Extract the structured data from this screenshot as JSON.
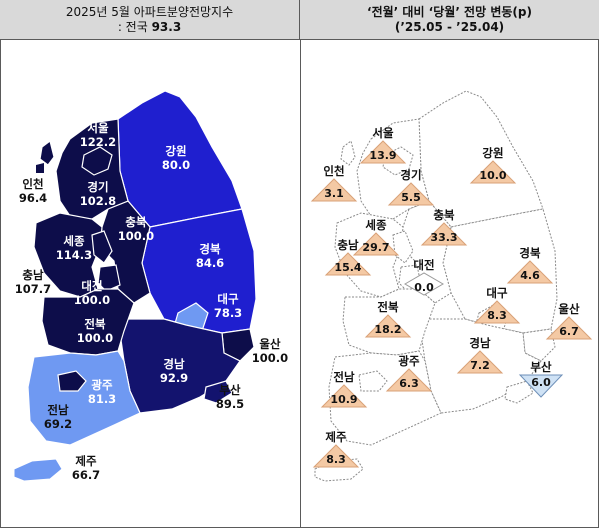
{
  "header_left": {
    "line1": "2025년 5월 아파트분양전망지수",
    "line2_prefix": ": 전국 ",
    "line2_value": "93.3"
  },
  "header_right": {
    "line1": "‘전월’ 대비 ‘당월’ 전망 변동(p)",
    "line2": "(’25.05  -  ’25.04)"
  },
  "colors": {
    "dark_navy": "#0d0d4a",
    "navy": "#13136e",
    "blue": "#1f1fcf",
    "light_blue": "#6f99f2",
    "up_triangle": "#f4c9a4",
    "down_triangle": "#cfe2f5"
  },
  "left_map": [
    {
      "name": "서울",
      "value": "122.2"
    },
    {
      "name": "인천",
      "value": "96.4"
    },
    {
      "name": "경기",
      "value": "102.8"
    },
    {
      "name": "강원",
      "value": "80.0"
    },
    {
      "name": "충북",
      "value": "100.0"
    },
    {
      "name": "세종",
      "value": "114.3"
    },
    {
      "name": "충남",
      "value": "107.7"
    },
    {
      "name": "대전",
      "value": "100.0"
    },
    {
      "name": "경북",
      "value": "84.6"
    },
    {
      "name": "대구",
      "value": "78.3"
    },
    {
      "name": "전북",
      "value": "100.0"
    },
    {
      "name": "울산",
      "value": "100.0"
    },
    {
      "name": "경남",
      "value": "92.9"
    },
    {
      "name": "광주",
      "value": "81.3"
    },
    {
      "name": "부산",
      "value": "89.5"
    },
    {
      "name": "전남",
      "value": "69.2"
    },
    {
      "name": "제주",
      "value": "66.7"
    }
  ],
  "right_map": [
    {
      "name": "서울",
      "value": "13.9",
      "dir": "up"
    },
    {
      "name": "강원",
      "value": "10.0",
      "dir": "up"
    },
    {
      "name": "인천",
      "value": "3.1",
      "dir": "up"
    },
    {
      "name": "경기",
      "value": "5.5",
      "dir": "up"
    },
    {
      "name": "세종",
      "value": "29.7",
      "dir": "up"
    },
    {
      "name": "충북",
      "value": "33.3",
      "dir": "up"
    },
    {
      "name": "충남",
      "value": "15.4",
      "dir": "up"
    },
    {
      "name": "대전",
      "value": "0.0",
      "dir": "flat"
    },
    {
      "name": "경북",
      "value": "4.6",
      "dir": "up"
    },
    {
      "name": "대구",
      "value": "8.3",
      "dir": "up"
    },
    {
      "name": "전북",
      "value": "18.2",
      "dir": "up"
    },
    {
      "name": "울산",
      "value": "6.7",
      "dir": "up"
    },
    {
      "name": "광주",
      "value": "6.3",
      "dir": "up"
    },
    {
      "name": "경남",
      "value": "7.2",
      "dir": "up"
    },
    {
      "name": "부산",
      "value": "6.0",
      "dir": "down"
    },
    {
      "name": "전남",
      "value": "10.9",
      "dir": "up"
    },
    {
      "name": "제주",
      "value": "8.3",
      "dir": "up"
    }
  ]
}
